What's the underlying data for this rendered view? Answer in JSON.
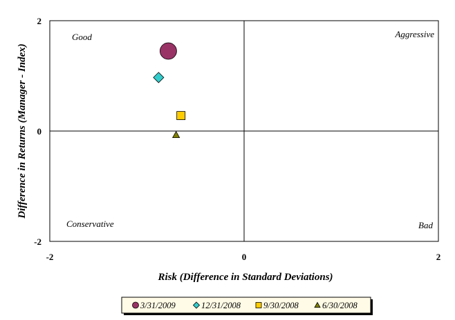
{
  "chart_data": {
    "type": "scatter",
    "title": "",
    "xlabel": "Risk (Difference in Standard Deviations)",
    "ylabel": "Difference in Returns (Manager - Index)",
    "xlim": [
      -2,
      2
    ],
    "ylim": [
      -2,
      2
    ],
    "x_ticks": [
      "-2",
      "0",
      "2"
    ],
    "y_ticks": [
      "2",
      "0",
      "-2"
    ],
    "grid": false,
    "legend_position": "bottom",
    "quadrant_labels": {
      "top_left": "Good",
      "top_right": "Aggressive",
      "bottom_left": "Conservative",
      "bottom_right": "Bad"
    },
    "series": [
      {
        "name": "3/31/2009",
        "marker": "circle",
        "color": "#993366",
        "x": -0.78,
        "y": 1.45
      },
      {
        "name": "12/31/2008",
        "marker": "diamond",
        "color": "#33cccc",
        "x": -0.88,
        "y": 0.97
      },
      {
        "name": "9/30/2008",
        "marker": "square",
        "color": "#ffcc00",
        "x": -0.65,
        "y": 0.28
      },
      {
        "name": "6/30/2008",
        "marker": "triangle",
        "color": "#808000",
        "x": -0.7,
        "y": -0.07
      }
    ]
  }
}
